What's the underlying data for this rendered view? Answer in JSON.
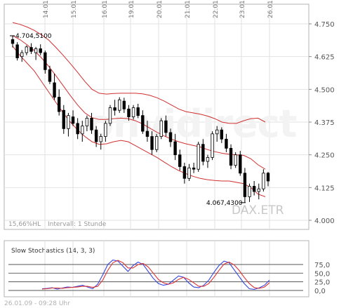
{
  "chart_data": [
    {
      "type": "candlestick",
      "title": "",
      "x_tick_labels": [
        "14.01.",
        "15.01.",
        "16.01.",
        "19.01.",
        "20.01.",
        "21.01.",
        "22.01.",
        "23.01.",
        "26.01."
      ],
      "y_tick_labels": [
        "4.750",
        "4.625",
        "4.500",
        "4.375",
        "4.250",
        "4.125",
        "4.000"
      ],
      "ylim": [
        4000,
        4780
      ],
      "grid": true,
      "annotations": {
        "high_label": "4.704,5100",
        "low_label": "4.067,4300",
        "watermark": "onvidirect",
        "symbol": "DAX.ETR",
        "range_text": "15,66%HL",
        "interval_text": "Intervall: 1 Stunde"
      },
      "colors": {
        "bollinger": "#d03030",
        "up": "#ffffff",
        "down": "#000000",
        "grid": "#e2e2e2"
      },
      "series": [
        {
          "type": "candlestick",
          "candles": [
            [
              4690,
              4704,
              4660,
              4675
            ],
            [
              4670,
              4680,
              4610,
              4620
            ],
            [
              4625,
              4650,
              4605,
              4640
            ],
            [
              4640,
              4668,
              4630,
              4662
            ],
            [
              4660,
              4676,
              4635,
              4645
            ],
            [
              4640,
              4662,
              4612,
              4655
            ],
            [
              4655,
              4672,
              4630,
              4640
            ],
            [
              4640,
              4648,
              4560,
              4575
            ],
            [
              4575,
              4590,
              4520,
              4530
            ],
            [
              4525,
              4560,
              4460,
              4470
            ],
            [
              4470,
              4500,
              4400,
              4415
            ],
            [
              4420,
              4440,
              4330,
              4350
            ],
            [
              4350,
              4410,
              4320,
              4400
            ],
            [
              4395,
              4420,
              4360,
              4370
            ],
            [
              4370,
              4390,
              4310,
              4330
            ],
            [
              4330,
              4380,
              4300,
              4360
            ],
            [
              4360,
              4400,
              4340,
              4390
            ],
            [
              4390,
              4410,
              4330,
              4345
            ],
            [
              4345,
              4360,
              4280,
              4300
            ],
            [
              4300,
              4330,
              4270,
              4320
            ],
            [
              4320,
              4380,
              4300,
              4370
            ],
            [
              4370,
              4440,
              4360,
              4430
            ],
            [
              4430,
              4460,
              4400,
              4420
            ],
            [
              4420,
              4470,
              4410,
              4460
            ],
            [
              4455,
              4468,
              4410,
              4425
            ],
            [
              4425,
              4440,
              4380,
              4395
            ],
            [
              4395,
              4440,
              4385,
              4430
            ],
            [
              4430,
              4445,
              4390,
              4400
            ],
            [
              4400,
              4420,
              4330,
              4340
            ],
            [
              4340,
              4380,
              4300,
              4320
            ],
            [
              4320,
              4340,
              4250,
              4270
            ],
            [
              4270,
              4330,
              4260,
              4320
            ],
            [
              4320,
              4390,
              4310,
              4380
            ],
            [
              4380,
              4400,
              4320,
              4335
            ],
            [
              4335,
              4350,
              4280,
              4300
            ],
            [
              4300,
              4330,
              4230,
              4250
            ],
            [
              4250,
              4270,
              4190,
              4205
            ],
            [
              4205,
              4220,
              4140,
              4160
            ],
            [
              4160,
              4215,
              4150,
              4200
            ],
            [
              4200,
              4220,
              4180,
              4195
            ],
            [
              4195,
              4300,
              4185,
              4290
            ],
            [
              4290,
              4310,
              4210,
              4225
            ],
            [
              4225,
              4250,
              4200,
              4240
            ],
            [
              4240,
              4340,
              4230,
              4330
            ],
            [
              4330,
              4360,
              4300,
              4345
            ],
            [
              4345,
              4355,
              4295,
              4310
            ],
            [
              4310,
              4330,
              4260,
              4275
            ],
            [
              4275,
              4290,
              4195,
              4210
            ],
            [
              4210,
              4260,
              4200,
              4250
            ],
            [
              4250,
              4265,
              4170,
              4180
            ],
            [
              4180,
              4200,
              4067,
              4090
            ],
            [
              4090,
              4140,
              4070,
              4130
            ],
            [
              4130,
              4150,
              4095,
              4110
            ],
            [
              4110,
              4140,
              4080,
              4120
            ],
            [
              4120,
              4195,
              4110,
              4180
            ],
            [
              4180,
              4185,
              4130,
              4150
            ]
          ],
          "x_range_days": [
            "14.01.",
            "26.01."
          ]
        },
        {
          "name": "",
          "type": "line",
          "role": "bollinger-upper",
          "values": [
            4755,
            4748,
            4738,
            4725,
            4708,
            4688,
            4660,
            4630,
            4598,
            4565,
            4530,
            4500,
            4485,
            4482,
            4484,
            4485,
            4485,
            4485,
            4483,
            4477,
            4468,
            4455,
            4440,
            4425,
            4415,
            4410,
            4405,
            4398,
            4388,
            4375,
            4370,
            4370,
            4380,
            4388,
            4390,
            4375
          ]
        },
        {
          "name": "",
          "type": "line",
          "role": "bollinger-middle",
          "values": [
            4705,
            4690,
            4670,
            4648,
            4620,
            4588,
            4552,
            4514,
            4476,
            4440,
            4410,
            4392,
            4385,
            4385,
            4388,
            4390,
            4388,
            4380,
            4368,
            4352,
            4336,
            4322,
            4310,
            4300,
            4292,
            4286,
            4280,
            4270,
            4262,
            4256,
            4252,
            4250,
            4248,
            4235,
            4212,
            4195
          ]
        },
        {
          "name": "",
          "type": "line",
          "role": "bollinger-lower",
          "values": [
            4665,
            4630,
            4600,
            4570,
            4530,
            4490,
            4450,
            4410,
            4375,
            4345,
            4320,
            4300,
            4290,
            4292,
            4300,
            4305,
            4300,
            4285,
            4270,
            4255,
            4240,
            4222,
            4205,
            4190,
            4178,
            4168,
            4160,
            4155,
            4152,
            4150,
            4150,
            4145,
            4140,
            4125,
            4100,
            4090
          ]
        }
      ]
    },
    {
      "type": "line",
      "title": "Slow Stochastics (14, 3, 3)",
      "y_tick_labels": [
        "75,0",
        "50,0",
        "25,0",
        "0,0"
      ],
      "ylim": [
        -10,
        100
      ],
      "grid": true,
      "reference_lines": [
        75,
        50,
        25,
        0
      ],
      "colors": {
        "k": "#3344dd",
        "d": "#dd3333",
        "ref": "#555555"
      },
      "series": [
        {
          "name": "",
          "values": [
            5,
            6,
            8,
            4,
            7,
            10,
            9,
            12,
            15,
            10,
            5,
            18,
            45,
            75,
            88,
            85,
            70,
            55,
            72,
            82,
            75,
            55,
            35,
            20,
            15,
            18,
            30,
            42,
            38,
            22,
            10,
            8,
            15,
            30,
            52,
            72,
            85,
            80,
            60,
            40,
            20,
            5,
            3,
            8,
            15,
            30
          ]
        },
        {
          "name": "",
          "values": [
            4,
            5,
            7,
            7,
            6,
            8,
            9,
            10,
            12,
            12,
            9,
            12,
            30,
            58,
            80,
            87,
            80,
            65,
            65,
            75,
            78,
            68,
            50,
            32,
            22,
            18,
            22,
            32,
            38,
            32,
            22,
            12,
            12,
            20,
            38,
            58,
            76,
            82,
            74,
            58,
            38,
            20,
            8,
            6,
            10,
            22
          ]
        }
      ]
    }
  ],
  "footer": {
    "date_text": "26.01.09 - 09:28 Uhr"
  }
}
